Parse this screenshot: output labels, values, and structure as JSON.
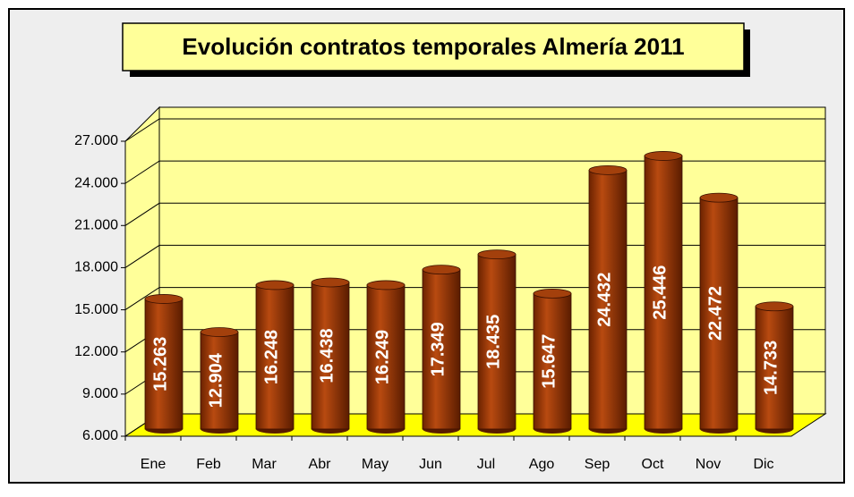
{
  "chart_data": {
    "type": "bar",
    "title": "Evolución contratos temporales Almería 2011",
    "categories": [
      "Ene",
      "Feb",
      "Mar",
      "Abr",
      "May",
      "Jun",
      "Jul",
      "Ago",
      "Sep",
      "Oct",
      "Nov",
      "Dic"
    ],
    "values": [
      15263,
      12904,
      16248,
      16438,
      16249,
      17349,
      18435,
      15647,
      24432,
      25446,
      22472,
      14733
    ],
    "value_labels": [
      "15.263",
      "12.904",
      "16.248",
      "16.438",
      "16.249",
      "17.349",
      "18.435",
      "15.647",
      "24.432",
      "25.446",
      "22.472",
      "14.733"
    ],
    "color": "#993300",
    "ylim": [
      6000,
      27000
    ],
    "yticks": [
      {
        "value": 6000,
        "label": "6.000"
      },
      {
        "value": 9000,
        "label": "9.000"
      },
      {
        "value": 12000,
        "label": "12.000"
      },
      {
        "value": 15000,
        "label": "15.000"
      },
      {
        "value": 18000,
        "label": "18.000"
      },
      {
        "value": 21000,
        "label": "21.000"
      },
      {
        "value": 24000,
        "label": "24.000"
      },
      {
        "value": 27000,
        "label": "27.000"
      }
    ],
    "grid": true
  }
}
